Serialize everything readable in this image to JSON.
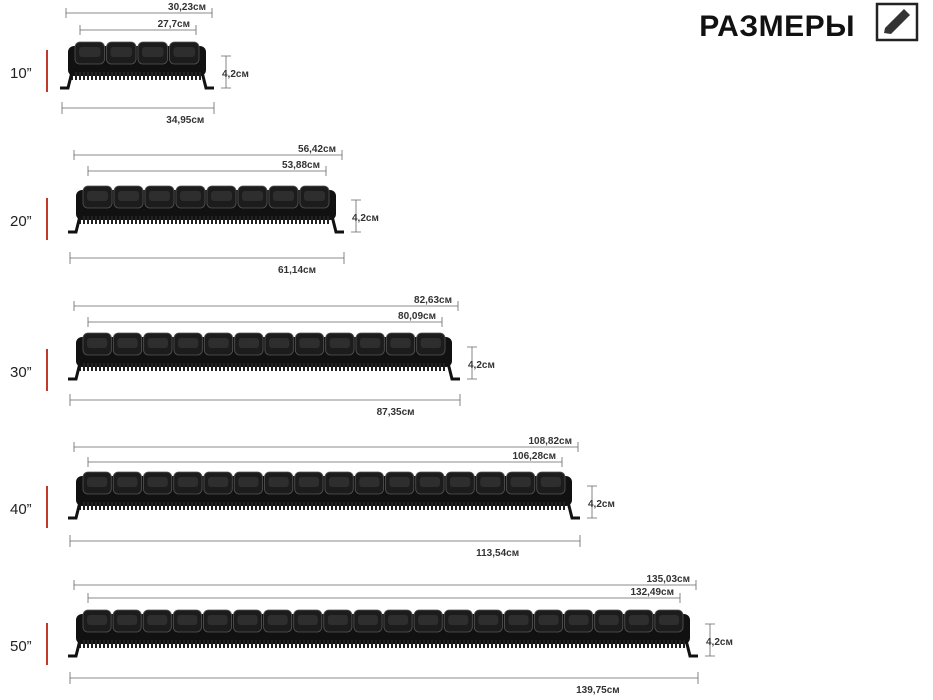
{
  "header": {
    "title": "РАЗМЕРЫ"
  },
  "rows": [
    {
      "size": "10”",
      "overall": "30,23см",
      "inner": "27,7см",
      "height": "4,2см",
      "mount": "34,95см"
    },
    {
      "size": "20”",
      "overall": "56,42см",
      "inner": "53,88см",
      "height": "4,2см",
      "mount": "61,14см"
    },
    {
      "size": "30”",
      "overall": "82,63см",
      "inner": "80,09см",
      "height": "4,2см",
      "mount": "87,35см"
    },
    {
      "size": "40”",
      "overall": "108,82см",
      "inner": "106,28см",
      "height": "4,2см",
      "mount": "113,54см"
    },
    {
      "size": "50”",
      "overall": "135,03см",
      "inner": "132,49см",
      "height": "4,2см",
      "mount": "139,75см"
    }
  ]
}
